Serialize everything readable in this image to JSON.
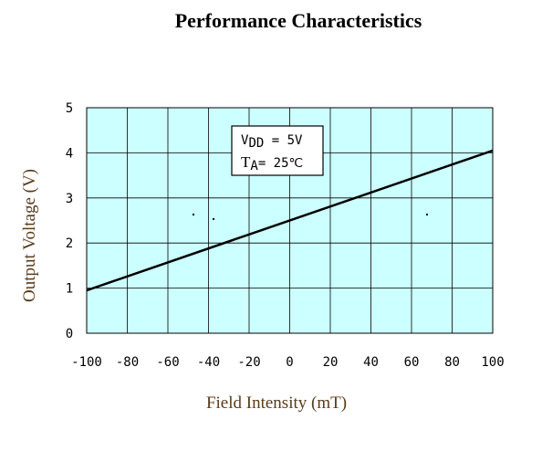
{
  "chart_data": {
    "type": "line",
    "title": "Performance Characteristics",
    "xlabel": "Field Intensity (mT)",
    "ylabel": "Output Voltage (V)",
    "xlim": [
      -100,
      100
    ],
    "ylim": [
      0,
      5
    ],
    "x_ticks": [
      "-100",
      "-80",
      "-60",
      "-40",
      "-20",
      "0",
      "20",
      "40",
      "60",
      "80",
      "100"
    ],
    "y_ticks": [
      "0",
      "1",
      "2",
      "3",
      "4",
      "5"
    ],
    "grid": true,
    "plot_background": "#ccffff",
    "series": [
      {
        "x": [
          -100,
          100
        ],
        "y": [
          0.95,
          4.05
        ],
        "color": "#000000"
      }
    ],
    "annotation": {
      "vdd_symbol": "V",
      "vdd_subscript": "DD",
      "vdd_value": " = 5V",
      "ta_symbol": "T",
      "ta_subscript": "A",
      "ta_value": "= 25℃"
    }
  }
}
